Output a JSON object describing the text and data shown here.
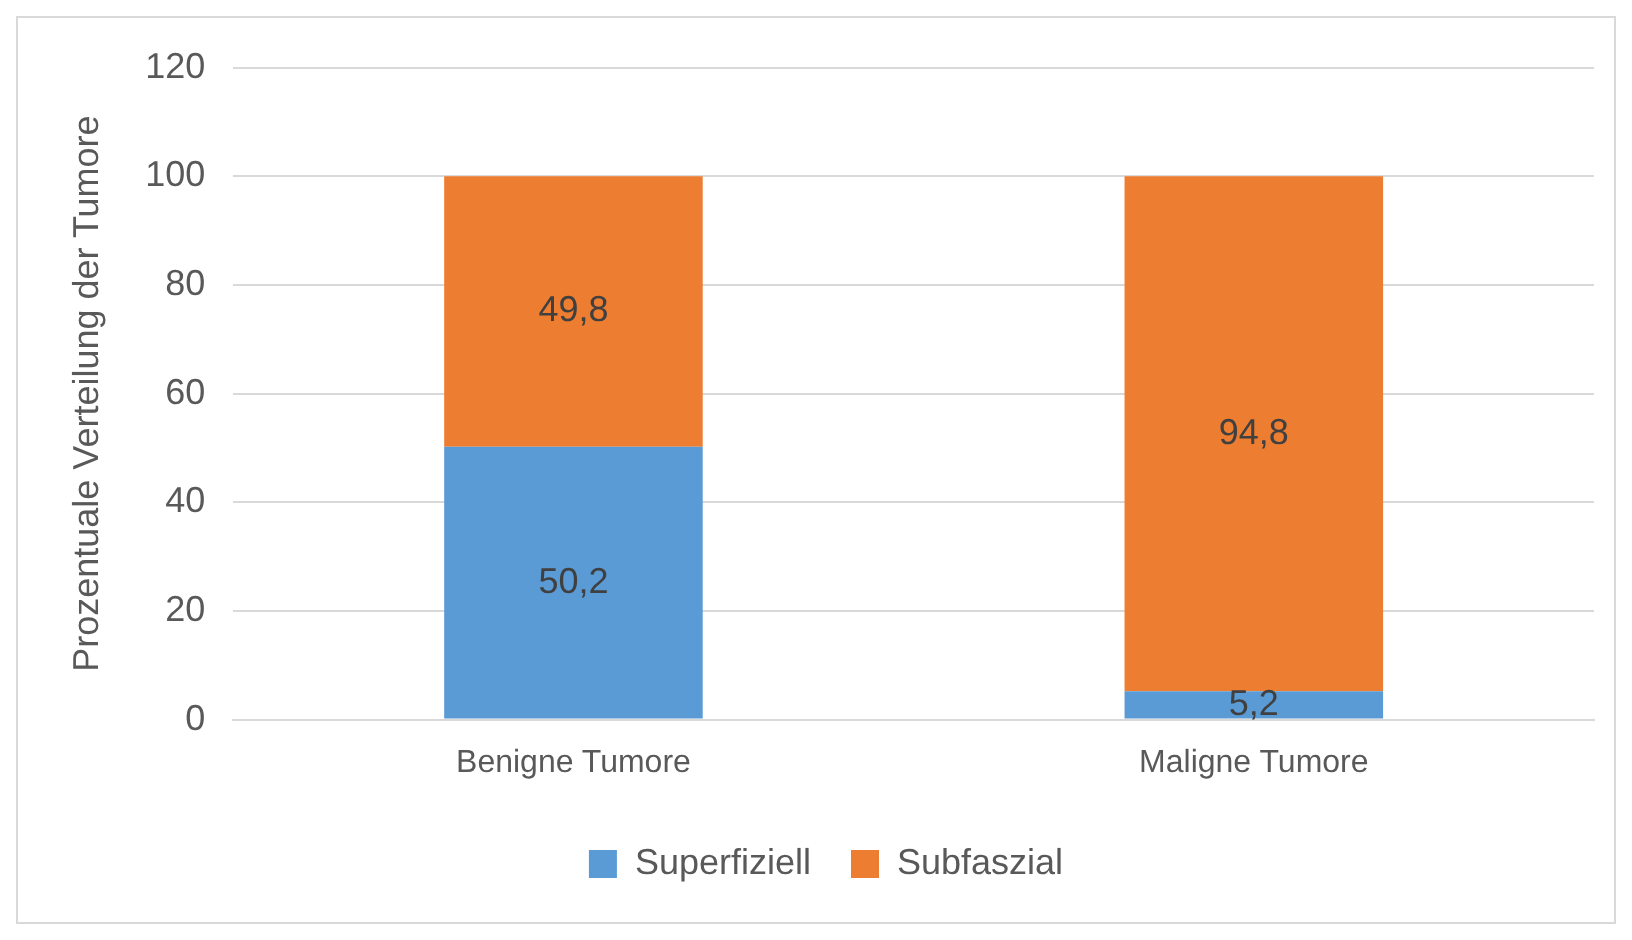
{
  "chart_data": {
    "type": "bar",
    "stacked": true,
    "ylabel": "Prozentuale Verteilung der Tumore",
    "categories": [
      "Benigne Tumore",
      "Maligne Tumore"
    ],
    "series": [
      {
        "name": "Superfiziell",
        "color": "#5b9bd5",
        "values": [
          50.2,
          5.2
        ],
        "value_labels": [
          "50,2",
          "5,2"
        ]
      },
      {
        "name": "Subfaszial",
        "color": "#ed7d31",
        "values": [
          49.8,
          94.8
        ],
        "value_labels": [
          "49,8",
          "94,8"
        ]
      }
    ],
    "ylim": [
      0,
      120
    ],
    "yticks": [
      0,
      20,
      40,
      60,
      80,
      100,
      120
    ],
    "grid": "y",
    "legend": "bottom"
  }
}
